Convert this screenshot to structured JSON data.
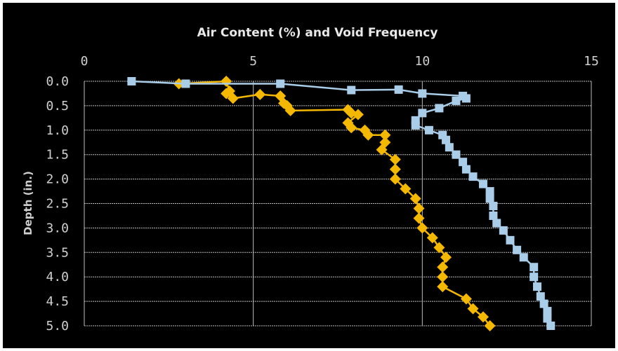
{
  "chart_data": {
    "type": "line",
    "title": "Air Content (%) and Void Frequency",
    "xlabel": "",
    "ylabel": "Depth (in.)",
    "x_axis_position": "top",
    "y_axis_inverted": true,
    "xlim": [
      0,
      15
    ],
    "ylim": [
      0,
      5
    ],
    "xticks": [
      "0",
      "5",
      "10",
      "15"
    ],
    "yticks": [
      "0.0",
      "0.5",
      "1.0",
      "1.5",
      "2.0",
      "2.5",
      "3.0",
      "3.5",
      "4.0",
      "4.5",
      "5.0"
    ],
    "grid": true,
    "colors": {
      "background": "#000000",
      "grid": "#bdbdbd",
      "series_1": "#f5b800",
      "series_2": "#a9cde8"
    },
    "series": [
      {
        "marker": "diamond",
        "color": "#f5b800",
        "points": [
          {
            "x": 2.8,
            "y": 0.05
          },
          {
            "x": 4.2,
            "y": 0.0
          },
          {
            "x": 4.3,
            "y": 0.2
          },
          {
            "x": 4.2,
            "y": 0.25
          },
          {
            "x": 4.4,
            "y": 0.35
          },
          {
            "x": 5.2,
            "y": 0.27
          },
          {
            "x": 5.8,
            "y": 0.3
          },
          {
            "x": 5.9,
            "y": 0.45
          },
          {
            "x": 6.0,
            "y": 0.5
          },
          {
            "x": 6.1,
            "y": 0.6
          },
          {
            "x": 7.8,
            "y": 0.58
          },
          {
            "x": 7.9,
            "y": 0.65
          },
          {
            "x": 8.1,
            "y": 0.68
          },
          {
            "x": 7.8,
            "y": 0.85
          },
          {
            "x": 7.9,
            "y": 0.95
          },
          {
            "x": 8.3,
            "y": 1.0
          },
          {
            "x": 8.4,
            "y": 1.1
          },
          {
            "x": 8.9,
            "y": 1.1
          },
          {
            "x": 8.9,
            "y": 1.25
          },
          {
            "x": 8.8,
            "y": 1.4
          },
          {
            "x": 9.2,
            "y": 1.6
          },
          {
            "x": 9.2,
            "y": 1.8
          },
          {
            "x": 9.2,
            "y": 2.0
          },
          {
            "x": 9.5,
            "y": 2.2
          },
          {
            "x": 9.8,
            "y": 2.4
          },
          {
            "x": 9.9,
            "y": 2.6
          },
          {
            "x": 9.9,
            "y": 2.8
          },
          {
            "x": 10.0,
            "y": 3.0
          },
          {
            "x": 10.3,
            "y": 3.2
          },
          {
            "x": 10.5,
            "y": 3.4
          },
          {
            "x": 10.7,
            "y": 3.6
          },
          {
            "x": 10.6,
            "y": 3.8
          },
          {
            "x": 10.6,
            "y": 4.0
          },
          {
            "x": 10.6,
            "y": 4.2
          },
          {
            "x": 11.3,
            "y": 4.45
          },
          {
            "x": 11.5,
            "y": 4.65
          },
          {
            "x": 11.8,
            "y": 4.82
          },
          {
            "x": 12.0,
            "y": 5.0
          }
        ]
      },
      {
        "marker": "square",
        "color": "#a9cde8",
        "points": [
          {
            "x": 1.4,
            "y": 0.0
          },
          {
            "x": 3.0,
            "y": 0.05
          },
          {
            "x": 5.8,
            "y": 0.05
          },
          {
            "x": 7.9,
            "y": 0.18
          },
          {
            "x": 9.3,
            "y": 0.17
          },
          {
            "x": 10.0,
            "y": 0.25
          },
          {
            "x": 11.2,
            "y": 0.3
          },
          {
            "x": 11.3,
            "y": 0.35
          },
          {
            "x": 11.0,
            "y": 0.4
          },
          {
            "x": 10.5,
            "y": 0.55
          },
          {
            "x": 10.0,
            "y": 0.65
          },
          {
            "x": 9.8,
            "y": 0.8
          },
          {
            "x": 9.8,
            "y": 0.9
          },
          {
            "x": 10.2,
            "y": 1.0
          },
          {
            "x": 10.6,
            "y": 1.1
          },
          {
            "x": 10.7,
            "y": 1.2
          },
          {
            "x": 10.8,
            "y": 1.35
          },
          {
            "x": 11.0,
            "y": 1.5
          },
          {
            "x": 11.2,
            "y": 1.65
          },
          {
            "x": 11.3,
            "y": 1.8
          },
          {
            "x": 11.5,
            "y": 1.95
          },
          {
            "x": 11.8,
            "y": 2.1
          },
          {
            "x": 12.0,
            "y": 2.25
          },
          {
            "x": 12.0,
            "y": 2.4
          },
          {
            "x": 12.1,
            "y": 2.55
          },
          {
            "x": 12.1,
            "y": 2.75
          },
          {
            "x": 12.2,
            "y": 2.9
          },
          {
            "x": 12.4,
            "y": 3.05
          },
          {
            "x": 12.6,
            "y": 3.25
          },
          {
            "x": 12.8,
            "y": 3.45
          },
          {
            "x": 13.0,
            "y": 3.6
          },
          {
            "x": 13.3,
            "y": 3.8
          },
          {
            "x": 13.3,
            "y": 4.0
          },
          {
            "x": 13.4,
            "y": 4.2
          },
          {
            "x": 13.5,
            "y": 4.4
          },
          {
            "x": 13.6,
            "y": 4.55
          },
          {
            "x": 13.7,
            "y": 4.7
          },
          {
            "x": 13.7,
            "y": 4.85
          },
          {
            "x": 13.8,
            "y": 5.0
          }
        ]
      }
    ]
  }
}
